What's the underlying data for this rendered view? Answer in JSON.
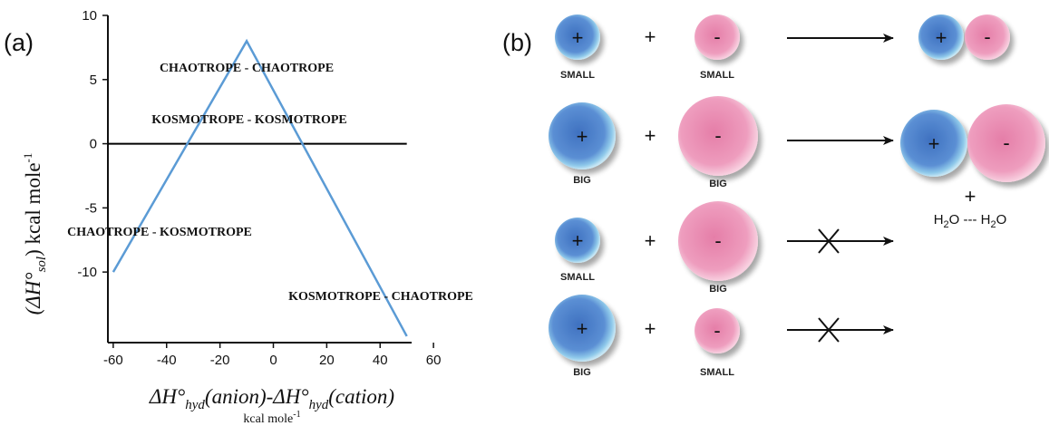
{
  "panel_a": {
    "label": "(a)",
    "y_title_main": "(ΔH°",
    "y_title_sub": "sol",
    "y_title_tail": ") kcal mole",
    "y_title_sup": "-1",
    "x_title_main": "ΔH°",
    "x_title_sub1": "hyd",
    "x_title_mid": "(anion)-ΔH°",
    "x_title_sub2": "hyd",
    "x_title_tail": "(cation)",
    "x_unit_main": "kcal mole",
    "x_unit_sup": "-1",
    "regions": {
      "chaotrope_chaotrope": "CHAOTROPE - CHAOTROPE",
      "kosmotrope_kosmotrope": "KOSMOTROPE - KOSMOTROPE",
      "chaotrope_kosmotrope": "CHAOTROPE - KOSMOTROPE",
      "kosmotrope_chaotrope": "KOSMOTROPE - CHAOTROPE"
    }
  },
  "chart_data": {
    "type": "line",
    "x_ticks": [
      -60,
      -40,
      -20,
      0,
      20,
      40,
      60
    ],
    "y_ticks": [
      10,
      5,
      0,
      -5,
      -10
    ],
    "xlim": [
      -62,
      62
    ],
    "ylim": [
      -15.5,
      10
    ],
    "series": [
      {
        "x": [
          -60,
          -10,
          50
        ],
        "y": [
          -10,
          8,
          -15
        ]
      }
    ],
    "colors": {
      "line": "#5b9bd5",
      "zero_line": "#000000"
    },
    "grid": false
  },
  "panel_b": {
    "label": "(b)",
    "ion_colors": {
      "cation": "#4a7fc9",
      "cation_rim": "#8cc7e8",
      "anion": "#e889ad",
      "anion_rim": "#f5bfd4"
    },
    "cation_sign": "+",
    "anion_sign": "-",
    "plus": "+",
    "rows": [
      {
        "left_label": "SMALL",
        "right_label": "SMALL",
        "result": "pair"
      },
      {
        "left_label": "BIG",
        "right_label": "BIG",
        "result": "pair_with_water"
      },
      {
        "left_label": "SMALL",
        "right_label": "BIG",
        "result": "blocked"
      },
      {
        "left_label": "BIG",
        "right_label": "SMALL",
        "result": "blocked"
      }
    ],
    "water_plus": "+",
    "water_left": "H",
    "water_mid": "O --- H",
    "water_right": "O",
    "water_sub": "2"
  }
}
